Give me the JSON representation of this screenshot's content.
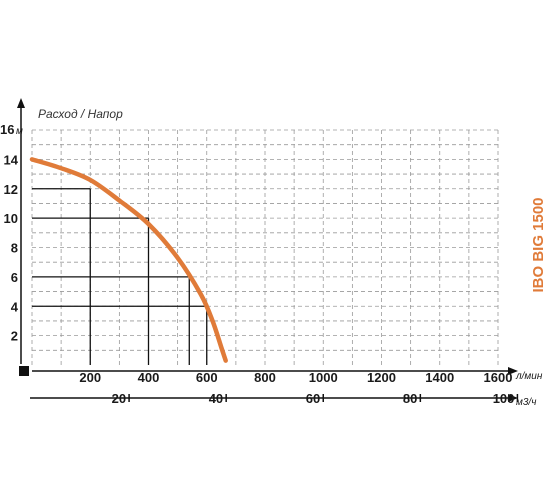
{
  "chart_data": {
    "type": "line",
    "y_axis_title": "Расход / Напор",
    "model_label": "IBO BIG 1500",
    "y_unit": "м",
    "y_top_label": "16",
    "y_ticks": [
      "2",
      "4",
      "6",
      "8",
      "10",
      "12",
      "14"
    ],
    "ylim": [
      0,
      16
    ],
    "x_unit": "л/мин",
    "x_ticks": [
      "200",
      "400",
      "600",
      "800",
      "1000",
      "1200",
      "1400",
      "1600"
    ],
    "xlim": [
      0,
      1600
    ],
    "x2_unit": "м3/ч",
    "x2_ticks": [
      "20",
      "40",
      "60",
      "80",
      "100"
    ],
    "x2_values": [
      20,
      40,
      60,
      80,
      100
    ],
    "grid": true,
    "curve_color": "#e07b39",
    "model_color": "#e07b39",
    "x": [
      0,
      100,
      200,
      300,
      400,
      500,
      580,
      620,
      650,
      665
    ],
    "y": [
      14.0,
      13.4,
      12.6,
      11.2,
      9.6,
      7.3,
      4.8,
      3.0,
      1.2,
      0.3
    ],
    "reference_lines": [
      {
        "x": 200,
        "y": 12
      },
      {
        "x": 400,
        "y": 10
      },
      {
        "x": 540,
        "y": 6
      },
      {
        "x": 600,
        "y": 4
      }
    ]
  }
}
